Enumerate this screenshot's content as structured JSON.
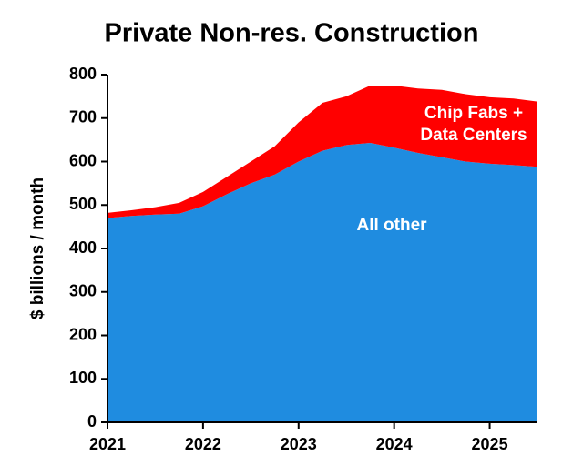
{
  "chart_data": {
    "type": "stacked_area",
    "title": "Private Non-res. Construction",
    "y_label": "$ billions / month",
    "x": [
      2021,
      2021.25,
      2021.5,
      2021.75,
      2022,
      2022.25,
      2022.5,
      2022.75,
      2023,
      2023.25,
      2023.5,
      2023.75,
      2024,
      2024.25,
      2024.5,
      2024.75,
      2025,
      2025.25,
      2025.5
    ],
    "series": [
      {
        "name": "All other",
        "color": "#1f8ce0",
        "values": [
          470,
          475,
          478,
          480,
          497,
          525,
          550,
          570,
          600,
          625,
          638,
          643,
          632,
          620,
          610,
          600,
          595,
          592,
          588
        ]
      },
      {
        "name": "Chip Fabs + Data Centers",
        "color": "#ff0000",
        "values": [
          12,
          13,
          17,
          25,
          33,
          40,
          50,
          65,
          90,
          110,
          112,
          132,
          143,
          148,
          155,
          155,
          153,
          153,
          150
        ]
      }
    ],
    "xlim": [
      2021,
      2025.5
    ],
    "xticks": [
      2021,
      2022,
      2023,
      2024,
      2025
    ],
    "ylim": [
      0,
      800
    ],
    "yticks": [
      0,
      100,
      200,
      300,
      400,
      500,
      600,
      700,
      800
    ]
  }
}
